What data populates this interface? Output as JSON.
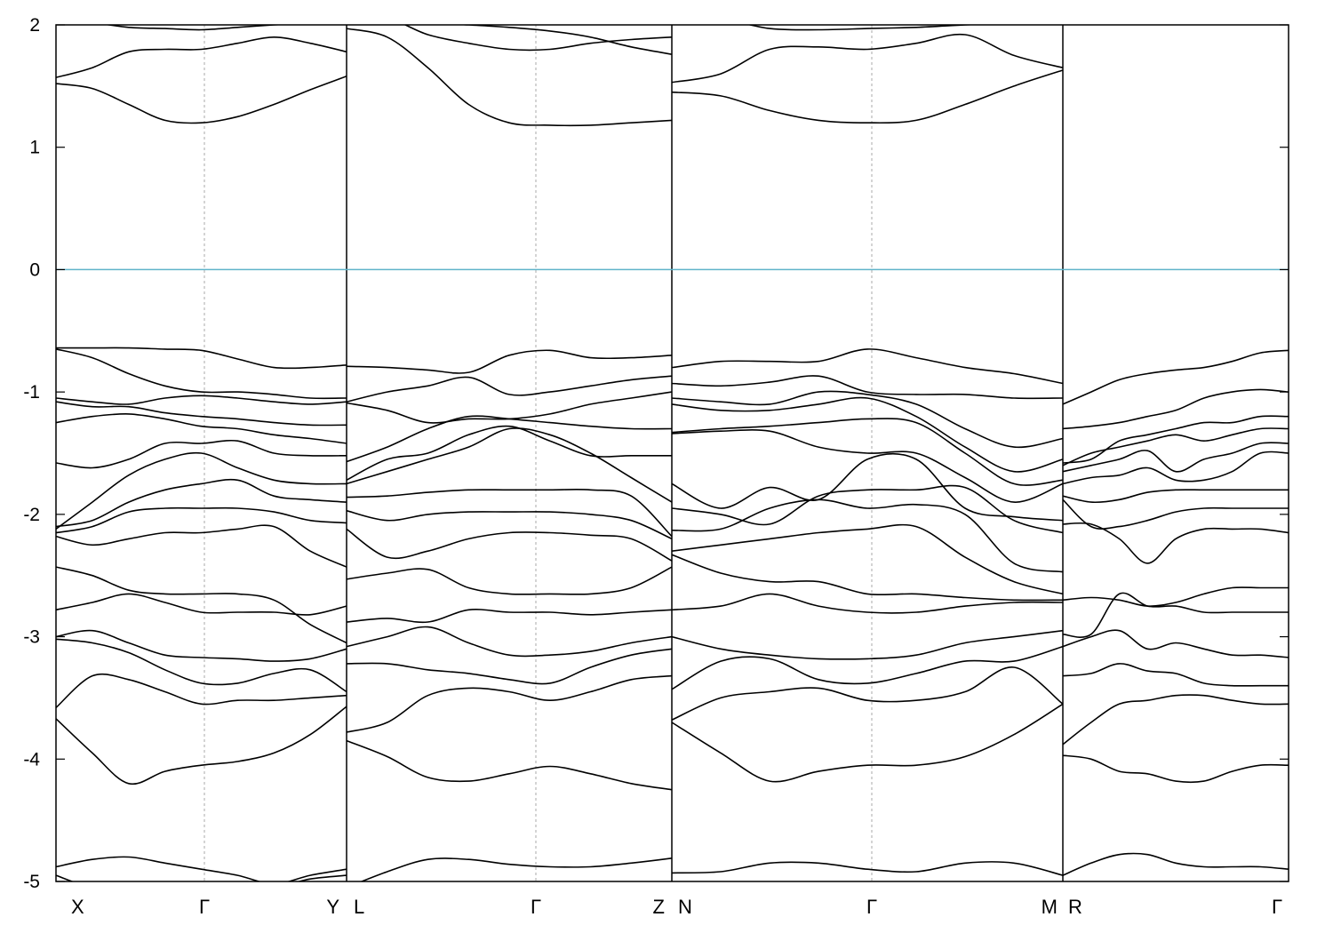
{
  "chart_data": {
    "type": "line",
    "title": "",
    "xlabel": "",
    "ylabel": "",
    "ylim": [
      -5,
      2
    ],
    "yticks": [
      -5,
      -4,
      -3,
      -2,
      -1,
      0,
      1,
      2
    ],
    "grid": "vertical dashed lines at symmetry points",
    "reference_line": {
      "y": 0,
      "color": "#5fb3c9"
    },
    "line_color": "#000000",
    "kpoint_labels": [
      "X",
      "Γ",
      "Y",
      "L",
      "Γ",
      "Z",
      "N",
      "Γ",
      "M",
      "R",
      "Γ"
    ],
    "segments": [
      {
        "x": [
          0,
          0.25,
          0.5,
          0.75,
          1,
          1.25,
          1.5,
          1.75,
          2
        ],
        "bands": [
          [
            -4.88,
            -4.82,
            -4.8,
            -4.85,
            -4.9,
            -4.95,
            -5.02,
            -4.95,
            -4.9
          ],
          [
            -4.95,
            -5.05,
            -5.05,
            -5.05,
            -5.05,
            -5.05,
            -5.05,
            -4.98,
            -4.95
          ],
          [
            -3.67,
            -3.95,
            -4.2,
            -4.1,
            -4.05,
            -4.02,
            -3.95,
            -3.8,
            -3.57
          ],
          [
            -3.58,
            -3.32,
            -3.35,
            -3.45,
            -3.55,
            -3.52,
            -3.52,
            -3.5,
            -3.48
          ],
          [
            -3.02,
            -3.05,
            -3.13,
            -3.27,
            -3.38,
            -3.38,
            -3.3,
            -3.27,
            -3.45
          ],
          [
            -3.0,
            -2.95,
            -3.05,
            -3.15,
            -3.17,
            -3.18,
            -3.2,
            -3.18,
            -3.1
          ],
          [
            -2.78,
            -2.72,
            -2.65,
            -2.72,
            -2.8,
            -2.8,
            -2.8,
            -2.82,
            -2.75
          ],
          [
            -2.43,
            -2.5,
            -2.62,
            -2.65,
            -2.65,
            -2.65,
            -2.7,
            -2.9,
            -3.05
          ],
          [
            -2.18,
            -2.25,
            -2.2,
            -2.15,
            -2.15,
            -2.12,
            -2.1,
            -2.3,
            -2.43
          ],
          [
            -2.15,
            -2.1,
            -1.98,
            -1.95,
            -1.95,
            -1.95,
            -1.98,
            -2.05,
            -2.07
          ],
          [
            -2.1,
            -2.05,
            -1.9,
            -1.8,
            -1.75,
            -1.72,
            -1.85,
            -1.88,
            -1.9
          ],
          [
            -2.12,
            -1.9,
            -1.68,
            -1.55,
            -1.5,
            -1.62,
            -1.72,
            -1.75,
            -1.75
          ],
          [
            -1.58,
            -1.62,
            -1.55,
            -1.42,
            -1.42,
            -1.4,
            -1.5,
            -1.52,
            -1.52
          ],
          [
            -1.25,
            -1.2,
            -1.18,
            -1.22,
            -1.28,
            -1.3,
            -1.35,
            -1.38,
            -1.42
          ],
          [
            -1.08,
            -1.12,
            -1.12,
            -1.17,
            -1.2,
            -1.22,
            -1.25,
            -1.27,
            -1.27
          ],
          [
            -1.05,
            -1.08,
            -1.1,
            -1.05,
            -1.03,
            -1.05,
            -1.08,
            -1.1,
            -1.08
          ],
          [
            -0.65,
            -0.72,
            -0.85,
            -0.95,
            -1.0,
            -1.0,
            -1.02,
            -1.05,
            -1.05
          ],
          [
            -0.64,
            -0.64,
            -0.64,
            -0.65,
            -0.66,
            -0.73,
            -0.8,
            -0.8,
            -0.78
          ],
          [
            1.52,
            1.48,
            1.35,
            1.22,
            1.2,
            1.25,
            1.35,
            1.47,
            1.58
          ],
          [
            1.57,
            1.65,
            1.78,
            1.8,
            1.8,
            1.85,
            1.9,
            1.85,
            1.78
          ],
          [
            2.05,
            2.02,
            1.98,
            1.97,
            1.96,
            1.98,
            2.0,
            2.02,
            2.03
          ]
        ]
      },
      {
        "x": [
          0,
          0.25,
          0.5,
          0.75,
          1,
          1.25,
          1.5,
          1.75,
          2
        ],
        "bands": [
          [
            -5.05,
            -4.92,
            -4.82,
            -4.82,
            -4.86,
            -4.88,
            -4.88,
            -4.85,
            -4.81
          ],
          [
            -3.85,
            -3.98,
            -4.15,
            -4.18,
            -4.12,
            -4.06,
            -4.12,
            -4.2,
            -4.25
          ],
          [
            -3.78,
            -3.7,
            -3.48,
            -3.42,
            -3.45,
            -3.52,
            -3.45,
            -3.35,
            -3.32
          ],
          [
            -3.22,
            -3.22,
            -3.27,
            -3.3,
            -3.35,
            -3.38,
            -3.25,
            -3.15,
            -3.1
          ],
          [
            -3.08,
            -3.0,
            -2.92,
            -3.05,
            -3.15,
            -3.15,
            -3.12,
            -3.05,
            -3.0
          ],
          [
            -2.88,
            -2.85,
            -2.88,
            -2.78,
            -2.8,
            -2.8,
            -2.82,
            -2.8,
            -2.78
          ],
          [
            -2.53,
            -2.48,
            -2.45,
            -2.6,
            -2.65,
            -2.65,
            -2.65,
            -2.6,
            -2.43
          ],
          [
            -2.12,
            -2.35,
            -2.3,
            -2.2,
            -2.15,
            -2.15,
            -2.17,
            -2.2,
            -2.38
          ],
          [
            -1.97,
            -2.05,
            -2.0,
            -1.98,
            -1.98,
            -1.98,
            -2.0,
            -2.05,
            -2.2
          ],
          [
            -1.86,
            -1.85,
            -1.82,
            -1.8,
            -1.8,
            -1.8,
            -1.8,
            -1.85,
            -2.18
          ],
          [
            -1.75,
            -1.65,
            -1.55,
            -1.45,
            -1.3,
            -1.35,
            -1.5,
            -1.7,
            -1.9
          ],
          [
            -1.72,
            -1.55,
            -1.5,
            -1.35,
            -1.28,
            -1.4,
            -1.52,
            -1.52,
            -1.52
          ],
          [
            -1.57,
            -1.45,
            -1.3,
            -1.2,
            -1.22,
            -1.25,
            -1.28,
            -1.3,
            -1.3
          ],
          [
            -1.09,
            -1.15,
            -1.25,
            -1.22,
            -1.22,
            -1.18,
            -1.1,
            -1.05,
            -1.0
          ],
          [
            -1.08,
            -1.0,
            -0.95,
            -0.88,
            -1.02,
            -1.0,
            -0.95,
            -0.9,
            -0.87
          ],
          [
            -0.79,
            -0.8,
            -0.82,
            -0.84,
            -0.7,
            -0.66,
            -0.72,
            -0.72,
            -0.7
          ],
          [
            1.97,
            1.9,
            1.65,
            1.35,
            1.2,
            1.18,
            1.18,
            1.2,
            1.22
          ],
          [
            2.02,
            2.05,
            1.92,
            1.85,
            1.8,
            1.8,
            1.85,
            1.88,
            1.9
          ],
          [
            2.05,
            2.05,
            2.02,
            2.0,
            1.98,
            1.95,
            1.9,
            1.82,
            1.76
          ]
        ]
      },
      {
        "x": [
          0,
          0.25,
          0.5,
          0.75,
          1,
          1.25,
          1.5,
          1.75,
          2
        ],
        "bands": [
          [
            -4.93,
            -4.92,
            -4.85,
            -4.85,
            -4.9,
            -4.92,
            -4.85,
            -4.85,
            -4.95
          ],
          [
            -3.7,
            -3.95,
            -4.18,
            -4.1,
            -4.05,
            -4.05,
            -3.98,
            -3.8,
            -3.55
          ],
          [
            -3.68,
            -3.5,
            -3.45,
            -3.42,
            -3.52,
            -3.52,
            -3.45,
            -3.25,
            -3.55
          ],
          [
            -3.43,
            -3.2,
            -3.18,
            -3.35,
            -3.38,
            -3.3,
            -3.2,
            -3.2,
            -3.08
          ],
          [
            -3.0,
            -3.1,
            -3.15,
            -3.18,
            -3.18,
            -3.15,
            -3.05,
            -3.0,
            -2.95
          ],
          [
            -2.78,
            -2.75,
            -2.65,
            -2.75,
            -2.8,
            -2.8,
            -2.75,
            -2.72,
            -2.72
          ],
          [
            -2.33,
            -2.48,
            -2.55,
            -2.55,
            -2.65,
            -2.65,
            -2.68,
            -2.7,
            -2.7
          ],
          [
            -2.3,
            -2.25,
            -2.2,
            -2.15,
            -2.12,
            -2.1,
            -2.35,
            -2.55,
            -2.65
          ],
          [
            -2.13,
            -2.12,
            -1.95,
            -1.88,
            -1.95,
            -1.92,
            -2.0,
            -2.4,
            -2.47
          ],
          [
            -1.95,
            -2.0,
            -2.08,
            -1.85,
            -1.8,
            -1.8,
            -1.78,
            -2.05,
            -2.15
          ],
          [
            -1.75,
            -1.95,
            -1.78,
            -1.88,
            -1.55,
            -1.55,
            -1.95,
            -2.02,
            -2.05
          ],
          [
            -1.34,
            -1.32,
            -1.32,
            -1.45,
            -1.5,
            -1.5,
            -1.7,
            -1.9,
            -1.75
          ],
          [
            -1.33,
            -1.3,
            -1.28,
            -1.25,
            -1.22,
            -1.25,
            -1.5,
            -1.75,
            -1.72
          ],
          [
            -1.1,
            -1.15,
            -1.15,
            -1.1,
            -1.05,
            -1.2,
            -1.45,
            -1.65,
            -1.55
          ],
          [
            -1.05,
            -1.08,
            -1.1,
            -1.0,
            -1.02,
            -1.1,
            -1.3,
            -1.45,
            -1.38
          ],
          [
            -0.93,
            -0.95,
            -0.92,
            -0.87,
            -1.0,
            -1.02,
            -1.02,
            -1.05,
            -1.05
          ],
          [
            -0.8,
            -0.75,
            -0.75,
            -0.75,
            -0.65,
            -0.72,
            -0.8,
            -0.85,
            -0.93
          ],
          [
            1.45,
            1.42,
            1.3,
            1.22,
            1.2,
            1.22,
            1.35,
            1.5,
            1.63
          ],
          [
            1.53,
            1.6,
            1.8,
            1.82,
            1.8,
            1.85,
            1.92,
            1.75,
            1.65
          ],
          [
            2.05,
            2.05,
            1.97,
            1.96,
            1.97,
            1.98,
            2.0,
            2.02,
            2.03
          ]
        ]
      },
      {
        "x": [
          0,
          0.25,
          0.5,
          0.75,
          1,
          1.25,
          1.5,
          1.75,
          2
        ],
        "bands": [
          [
            -4.95,
            -4.85,
            -4.78,
            -4.78,
            -4.85,
            -4.88,
            -4.88,
            -4.88,
            -4.9
          ],
          [
            -3.97,
            -4.0,
            -4.1,
            -4.12,
            -4.18,
            -4.18,
            -4.1,
            -4.05,
            -4.05
          ],
          [
            -3.88,
            -3.7,
            -3.55,
            -3.52,
            -3.48,
            -3.48,
            -3.52,
            -3.55,
            -3.55
          ],
          [
            -3.32,
            -3.3,
            -3.22,
            -3.28,
            -3.3,
            -3.38,
            -3.4,
            -3.4,
            -3.4
          ],
          [
            -3.08,
            -3.0,
            -2.95,
            -3.1,
            -3.05,
            -3.1,
            -3.15,
            -3.15,
            -3.17
          ],
          [
            -2.98,
            -2.98,
            -2.65,
            -2.75,
            -2.75,
            -2.8,
            -2.8,
            -2.8,
            -2.8
          ],
          [
            -2.7,
            -2.68,
            -2.7,
            -2.75,
            -2.72,
            -2.65,
            -2.6,
            -2.6,
            -2.6
          ],
          [
            -2.08,
            -2.08,
            -2.2,
            -2.4,
            -2.2,
            -2.12,
            -2.12,
            -2.12,
            -2.15
          ],
          [
            -1.88,
            -2.1,
            -2.1,
            -2.05,
            -1.98,
            -1.95,
            -1.95,
            -1.95,
            -1.95
          ],
          [
            -1.85,
            -1.9,
            -1.88,
            -1.82,
            -1.8,
            -1.8,
            -1.8,
            -1.8,
            -1.8
          ],
          [
            -1.75,
            -1.7,
            -1.68,
            -1.62,
            -1.72,
            -1.72,
            -1.65,
            -1.5,
            -1.5
          ],
          [
            -1.65,
            -1.6,
            -1.55,
            -1.48,
            -1.65,
            -1.55,
            -1.5,
            -1.42,
            -1.42
          ],
          [
            -1.6,
            -1.5,
            -1.45,
            -1.4,
            -1.35,
            -1.4,
            -1.35,
            -1.3,
            -1.3
          ],
          [
            -1.58,
            -1.55,
            -1.4,
            -1.35,
            -1.3,
            -1.25,
            -1.25,
            -1.2,
            -1.2
          ],
          [
            -1.3,
            -1.28,
            -1.25,
            -1.2,
            -1.15,
            -1.05,
            -1.0,
            -0.98,
            -1.0
          ],
          [
            -1.1,
            -1.0,
            -0.9,
            -0.85,
            -0.82,
            -0.8,
            -0.75,
            -0.68,
            -0.66
          ]
        ]
      }
    ]
  }
}
